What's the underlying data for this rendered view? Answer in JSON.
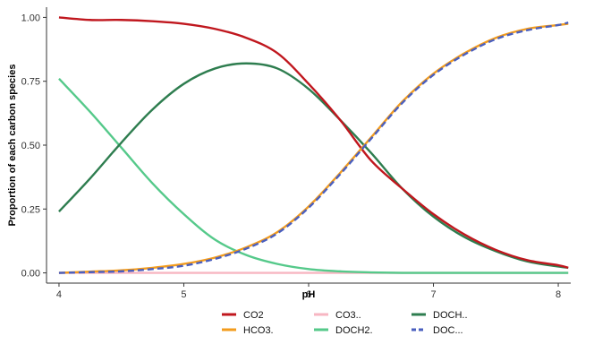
{
  "chart_data": {
    "type": "line",
    "title": "",
    "xlabel": "pH",
    "ylabel": "Proportion of each carbon species",
    "xlim": [
      3.9,
      8.1
    ],
    "ylim": [
      -0.04,
      1.04
    ],
    "xticks": [
      4,
      5,
      6,
      7,
      8
    ],
    "yticks": [
      0.0,
      0.25,
      0.5,
      0.75,
      1.0
    ],
    "xtick_labels": [
      "4",
      "5",
      "6",
      "7",
      "8"
    ],
    "ytick_labels": [
      "0.00",
      "0.25",
      "0.50",
      "0.75",
      "1.00"
    ],
    "grid": false,
    "legend_position": "bottom",
    "x": [
      4.0,
      4.25,
      4.5,
      4.75,
      5.0,
      5.25,
      5.5,
      5.75,
      6.0,
      6.25,
      6.5,
      6.75,
      7.0,
      7.25,
      7.5,
      7.75,
      8.0,
      8.08
    ],
    "series": [
      {
        "name": "CO2",
        "color": "#c0171e",
        "dash": "solid",
        "values": [
          1.0,
          0.99,
          0.99,
          0.985,
          0.975,
          0.955,
          0.92,
          0.86,
          0.74,
          0.6,
          0.44,
          0.33,
          0.23,
          0.15,
          0.09,
          0.05,
          0.03,
          0.02
        ]
      },
      {
        "name": "HCO3.",
        "color": "#f39c1d",
        "dash": "solid",
        "values": [
          0.0,
          0.005,
          0.01,
          0.02,
          0.035,
          0.06,
          0.1,
          0.16,
          0.26,
          0.39,
          0.53,
          0.67,
          0.78,
          0.86,
          0.92,
          0.955,
          0.97,
          0.975
        ]
      },
      {
        "name": "CO3..",
        "color": "#f7b6c2",
        "dash": "solid",
        "values": [
          0,
          0,
          0,
          0,
          0,
          0,
          0,
          0,
          0,
          0,
          0,
          0,
          0,
          0,
          0,
          0,
          0,
          0
        ]
      },
      {
        "name": "DOCH2.",
        "color": "#55c98a",
        "dash": "solid",
        "values": [
          0.76,
          0.63,
          0.49,
          0.35,
          0.23,
          0.13,
          0.07,
          0.035,
          0.015,
          0.006,
          0.002,
          0.0,
          0.0,
          0.0,
          0.0,
          0.0,
          0.0,
          0.0
        ]
      },
      {
        "name": "DOCH..",
        "color": "#2e7d4f",
        "dash": "solid",
        "values": [
          0.24,
          0.37,
          0.51,
          0.64,
          0.74,
          0.8,
          0.82,
          0.8,
          0.72,
          0.6,
          0.47,
          0.33,
          0.22,
          0.14,
          0.085,
          0.045,
          0.025,
          0.02
        ]
      },
      {
        "name": "DOC...",
        "color": "#4a5fbf",
        "dash": "dashed",
        "values": [
          0.0,
          0.003,
          0.006,
          0.015,
          0.028,
          0.055,
          0.095,
          0.155,
          0.255,
          0.385,
          0.525,
          0.665,
          0.775,
          0.855,
          0.915,
          0.95,
          0.97,
          0.98
        ]
      }
    ]
  }
}
